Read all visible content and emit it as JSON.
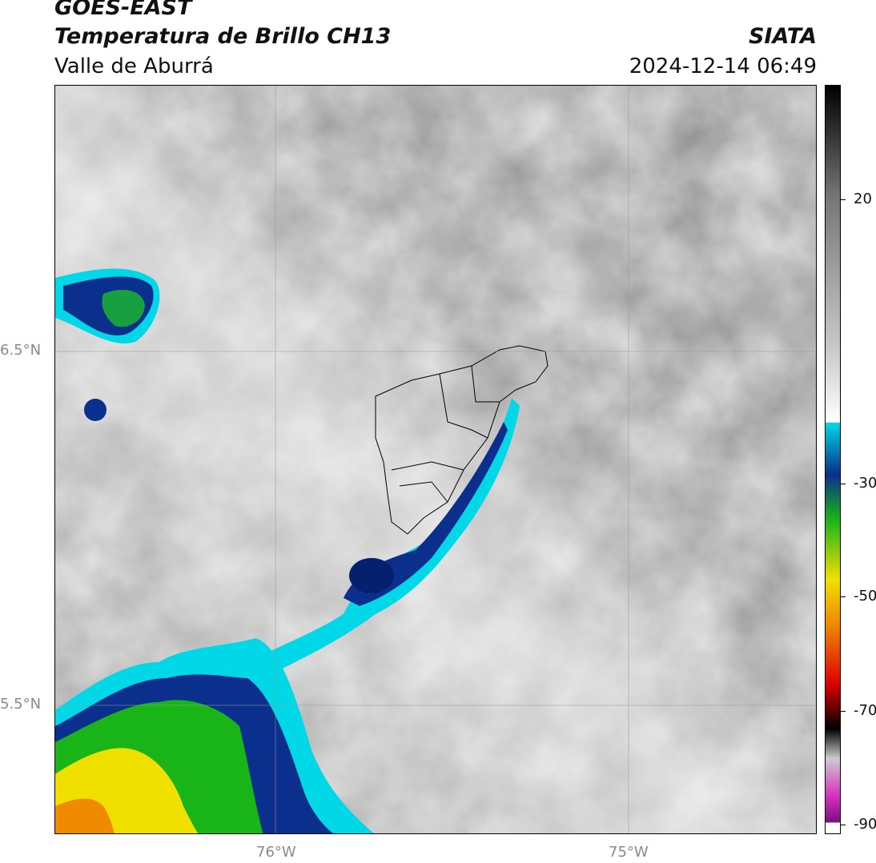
{
  "header": {
    "satellite": "GOES-EAST",
    "product": "Temperatura de Brillo CH13",
    "region": "Valle de Aburrá",
    "agency": "SIATA",
    "datetime": "2024-12-14 06:49"
  },
  "axes": {
    "lat_labels": [
      "6.5°N",
      "5.5°N"
    ],
    "lon_labels": [
      "76°W",
      "75°W"
    ]
  },
  "colorbar": {
    "ticks": [
      "20",
      "-30",
      "-50",
      "-70",
      "-90"
    ],
    "colors": {
      "black": "#000000",
      "white": "#ffffff",
      "cyan": "#00d8e8",
      "dark_blue": "#002a8c",
      "green": "#18b418",
      "yellow": "#f0e000",
      "orange": "#f08a00",
      "red": "#e00000",
      "magenta": "#d830c0",
      "purple": "#7a1080"
    }
  }
}
